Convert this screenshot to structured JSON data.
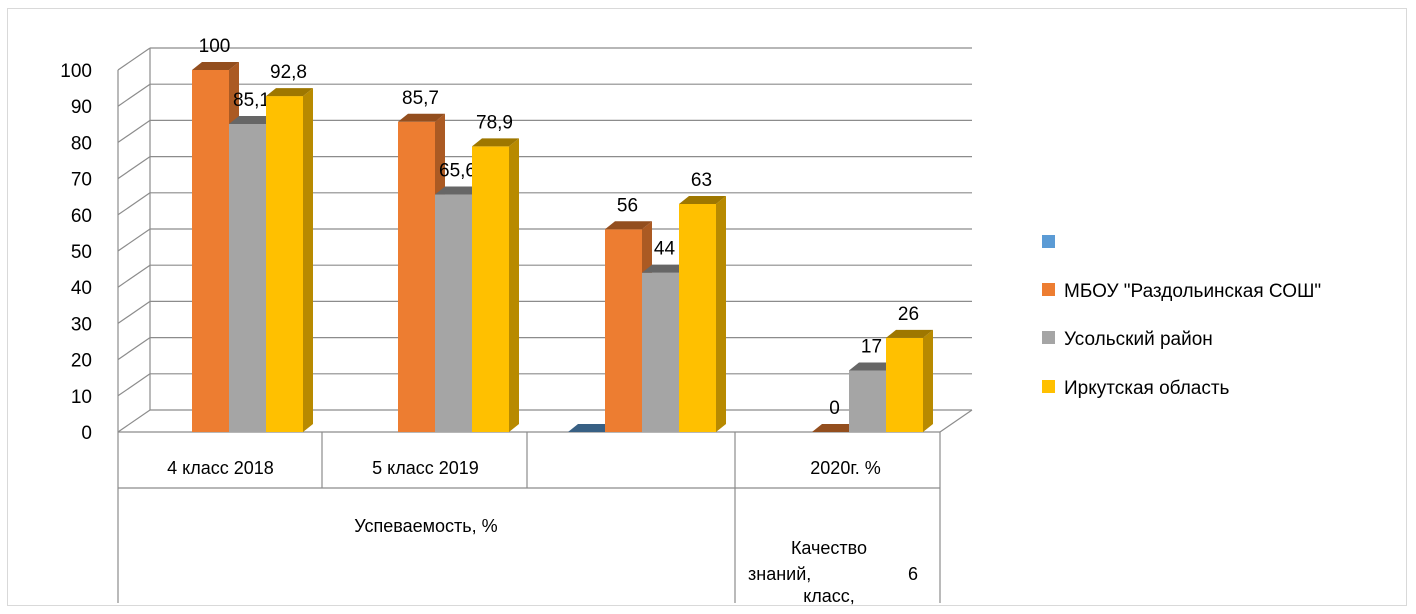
{
  "chart_data": {
    "type": "bar",
    "style": "3d-clustered-column",
    "ylim": [
      0,
      100
    ],
    "yticks": [
      0,
      10,
      20,
      30,
      40,
      50,
      60,
      70,
      80,
      90,
      100
    ],
    "grid": true,
    "legend_position": "right",
    "categories": [
      {
        "label": "4 класс 2018"
      },
      {
        "label": "5 класс 2019"
      },
      {
        "label": ""
      },
      {
        "label": "2020г. %"
      }
    ],
    "category_groups": [
      {
        "label": "Успеваемость, %",
        "span": [
          0,
          2
        ]
      },
      {
        "label_lines": [
          "Качество",
          "знаний,",
          "6",
          "класс,"
        ],
        "span": [
          3,
          3
        ]
      }
    ],
    "series": [
      {
        "name": "",
        "color": "#5b9bd5",
        "values": [
          null,
          null,
          0,
          null
        ],
        "labels": [
          "",
          "",
          "",
          ""
        ]
      },
      {
        "name": "МБОУ \"Раздольинская СОШ\"",
        "color": "#ed7d31",
        "values": [
          100,
          85.7,
          56,
          0
        ],
        "labels": [
          "100",
          "85,7",
          "56",
          "0"
        ]
      },
      {
        "name": "Усольский район",
        "color": "#a5a5a5",
        "values": [
          85.1,
          65.6,
          44,
          17
        ],
        "labels": [
          "85,1",
          "65,6",
          "44",
          "17"
        ]
      },
      {
        "name": "Иркутская область",
        "color": "#ffc000",
        "values": [
          92.8,
          78.9,
          63,
          26
        ],
        "labels": [
          "92,8",
          "78,9",
          "63",
          "26"
        ]
      }
    ]
  }
}
